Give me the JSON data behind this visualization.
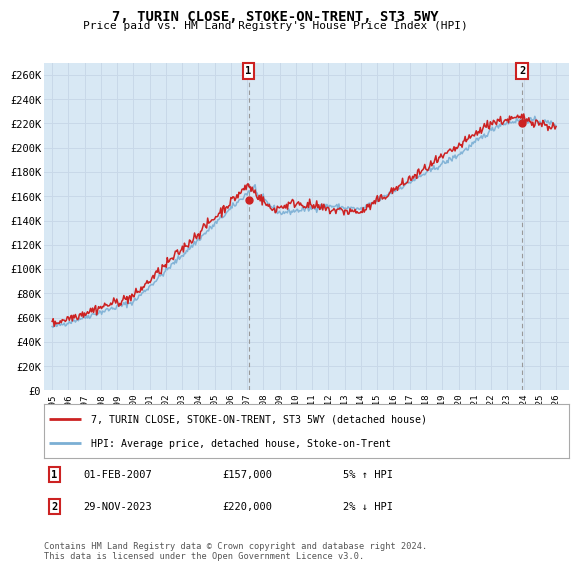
{
  "title": "7, TURIN CLOSE, STOKE-ON-TRENT, ST3 5WY",
  "subtitle": "Price paid vs. HM Land Registry's House Price Index (HPI)",
  "ylabel_ticks": [
    "£0",
    "£20K",
    "£40K",
    "£60K",
    "£80K",
    "£100K",
    "£120K",
    "£140K",
    "£160K",
    "£180K",
    "£200K",
    "£220K",
    "£240K",
    "£260K"
  ],
  "ytick_values": [
    0,
    20000,
    40000,
    60000,
    80000,
    100000,
    120000,
    140000,
    160000,
    180000,
    200000,
    220000,
    240000,
    260000
  ],
  "ylim": [
    0,
    270000
  ],
  "xlim_start": 1994.5,
  "xlim_end": 2026.8,
  "grid_color": "#c8d8e8",
  "plot_bg_color": "#d8e8f4",
  "hpi_color": "#7bafd4",
  "price_color": "#cc2222",
  "marker1_year": 2007.08,
  "marker1_price": 157000,
  "marker2_year": 2023.91,
  "marker2_price": 220000,
  "annotation1_date": "01-FEB-2007",
  "annotation1_price": "£157,000",
  "annotation1_hpi": "5% ↑ HPI",
  "annotation2_date": "29-NOV-2023",
  "annotation2_price": "£220,000",
  "annotation2_hpi": "2% ↓ HPI",
  "legend_line1": "7, TURIN CLOSE, STOKE-ON-TRENT, ST3 5WY (detached house)",
  "legend_line2": "HPI: Average price, detached house, Stoke-on-Trent",
  "footnote": "Contains HM Land Registry data © Crown copyright and database right 2024.\nThis data is licensed under the Open Government Licence v3.0.",
  "xtick_years": [
    1995,
    1996,
    1997,
    1998,
    1999,
    2000,
    2001,
    2002,
    2003,
    2004,
    2005,
    2006,
    2007,
    2008,
    2009,
    2010,
    2011,
    2012,
    2013,
    2014,
    2015,
    2016,
    2017,
    2018,
    2019,
    2020,
    2021,
    2022,
    2023,
    2024,
    2025,
    2026
  ]
}
